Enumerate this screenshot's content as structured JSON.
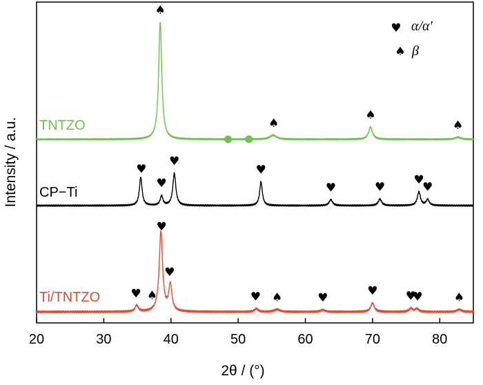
{
  "chart_data": {
    "type": "line",
    "title": "",
    "xlabel": "2θ / (°)",
    "ylabel": "Intensity / a.u.",
    "xlim": [
      20,
      85
    ],
    "xticks": [
      20,
      30,
      40,
      50,
      60,
      70,
      80
    ],
    "grid": false,
    "legend": {
      "placement": "top-right",
      "entries": [
        {
          "symbol": "♥",
          "label": "α/α′"
        },
        {
          "symbol": "♠",
          "label": "β"
        }
      ]
    },
    "series": [
      {
        "name": "TNTZO",
        "color": "#6cc24a",
        "baseline": 0.0,
        "peaks": [
          {
            "x": 38.4,
            "height": 1.0,
            "width": 0.28
          },
          {
            "x": 55.2,
            "height": 0.035,
            "width": 0.6
          },
          {
            "x": 69.7,
            "height": 0.105,
            "width": 0.35
          },
          {
            "x": 82.7,
            "height": 0.018,
            "width": 0.5
          }
        ],
        "markers": [
          {
            "x": 38.4,
            "symbol": "♠"
          },
          {
            "x": 55.3,
            "symbol": "♠"
          },
          {
            "x": 69.7,
            "symbol": "♠"
          },
          {
            "x": 82.7,
            "symbol": "♠"
          }
        ],
        "dots": [
          48.5,
          51.6
        ]
      },
      {
        "name": "CP−Ti",
        "color": "#000000",
        "baseline": 0.0,
        "peaks": [
          {
            "x": 35.5,
            "height": 0.24,
            "width": 0.24
          },
          {
            "x": 38.6,
            "height": 0.08,
            "width": 0.24
          },
          {
            "x": 40.5,
            "height": 0.27,
            "width": 0.27
          },
          {
            "x": 53.4,
            "height": 0.2,
            "width": 0.24
          },
          {
            "x": 63.8,
            "height": 0.05,
            "width": 0.3
          },
          {
            "x": 71.1,
            "height": 0.055,
            "width": 0.3
          },
          {
            "x": 76.9,
            "height": 0.115,
            "width": 0.28
          },
          {
            "x": 78.2,
            "height": 0.05,
            "width": 0.28
          }
        ],
        "markers": [
          {
            "x": 35.6,
            "symbol": "♥"
          },
          {
            "x": 38.6,
            "symbol": "♥"
          },
          {
            "x": 40.5,
            "symbol": "♥"
          },
          {
            "x": 53.4,
            "symbol": "♥"
          },
          {
            "x": 63.8,
            "symbol": "♥"
          },
          {
            "x": 71.1,
            "symbol": "♥"
          },
          {
            "x": 76.9,
            "symbol": "♥"
          },
          {
            "x": 78.2,
            "symbol": "♥"
          }
        ]
      },
      {
        "name": "Ti/TNTZO",
        "color": "#e8492d",
        "baseline": 0.0,
        "peaks": [
          {
            "x": 34.9,
            "height": 0.04,
            "width": 0.28
          },
          {
            "x": 38.5,
            "height": 0.5,
            "width": 0.3
          },
          {
            "x": 39.9,
            "height": 0.165,
            "width": 0.28
          },
          {
            "x": 52.7,
            "height": 0.02,
            "width": 0.3
          },
          {
            "x": 55.8,
            "height": 0.015,
            "width": 0.5
          },
          {
            "x": 62.6,
            "height": 0.012,
            "width": 0.4
          },
          {
            "x": 70.0,
            "height": 0.055,
            "width": 0.32
          },
          {
            "x": 75.7,
            "height": 0.022,
            "width": 0.3
          },
          {
            "x": 76.6,
            "height": 0.02,
            "width": 0.3
          },
          {
            "x": 82.9,
            "height": 0.015,
            "width": 0.4
          }
        ],
        "markers": [
          {
            "x": 34.8,
            "symbol": "♥"
          },
          {
            "x": 37.2,
            "symbol": "♠"
          },
          {
            "x": 38.6,
            "symbol": "♥"
          },
          {
            "x": 39.8,
            "symbol": "♥"
          },
          {
            "x": 52.6,
            "symbol": "♥"
          },
          {
            "x": 55.8,
            "symbol": "♠"
          },
          {
            "x": 62.6,
            "symbol": "♥"
          },
          {
            "x": 70.0,
            "symbol": "♥"
          },
          {
            "x": 75.7,
            "symbol": "♥"
          },
          {
            "x": 76.7,
            "symbol": "♥"
          },
          {
            "x": 82.9,
            "symbol": "♠"
          }
        ]
      }
    ]
  }
}
